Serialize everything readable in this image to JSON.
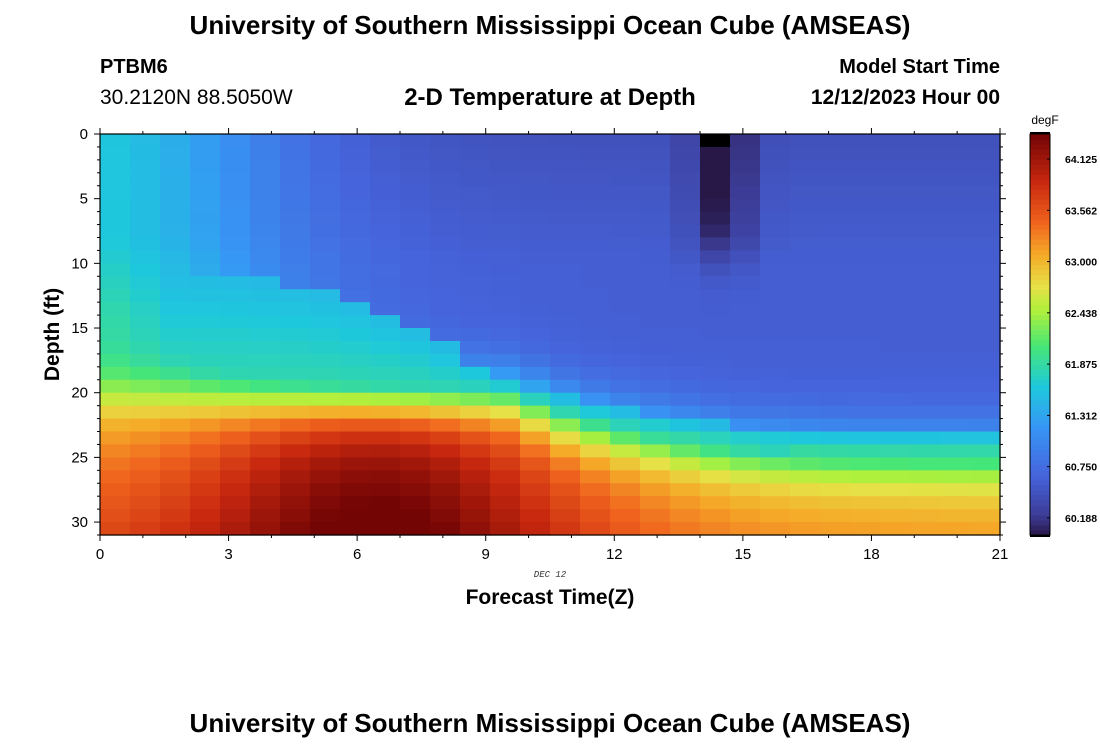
{
  "header": {
    "title": "University of Southern Mississippi Ocean Cube (AMSEAS)",
    "station_id": "PTBM6",
    "coordinates": "30.2120N  88.5050W",
    "subtitle": "2-D Temperature at Depth",
    "start_label": "Model Start Time",
    "start_value": "12/12/2023 Hour 00"
  },
  "footer": {
    "title": "University of Southern Mississippi Ocean Cube (AMSEAS)"
  },
  "chart_data": {
    "type": "heatmap",
    "title": "2-D Temperature at Depth",
    "xlabel": "Forecast Time(Z)",
    "ylabel": "Depth (ft)",
    "x_annotation": "DEC 12",
    "xlim": [
      0,
      21
    ],
    "ylim": [
      0,
      31
    ],
    "x_ticks": [
      "0",
      "3",
      "6",
      "9",
      "12",
      "15",
      "18",
      "21"
    ],
    "y_ticks": [
      "0",
      "5",
      "10",
      "15",
      "20",
      "25",
      "30"
    ],
    "grid": false,
    "colorbar": {
      "unit": "degF",
      "vmin": 60.0,
      "vmax": 64.4,
      "ticks": [
        "64.125",
        "63.562",
        "63.000",
        "62.438",
        "61.875",
        "61.312",
        "60.750",
        "60.188"
      ],
      "tick_values": [
        64.125,
        63.562,
        63.0,
        62.438,
        61.875,
        61.312,
        60.75,
        60.188
      ]
    },
    "grid_spec": {
      "time_step_hours": 0.7,
      "time_steps": 31,
      "depth_step_ft": 1,
      "depth_levels": 31
    },
    "field_description": "Warm (62-64.4 degF) bottom layer below ~20-22 ft, warmest near hours 5-9; mixed layer 61.5-62 degF near surface early hours; cold (60-60.5 degF) upper layer from hour ~7 onward with minimum ~60.0 degF near hour 14.5 at 1 ft; thermocline deepening from ~10 ft at hour 4 to ~22 ft after hour 15."
  }
}
